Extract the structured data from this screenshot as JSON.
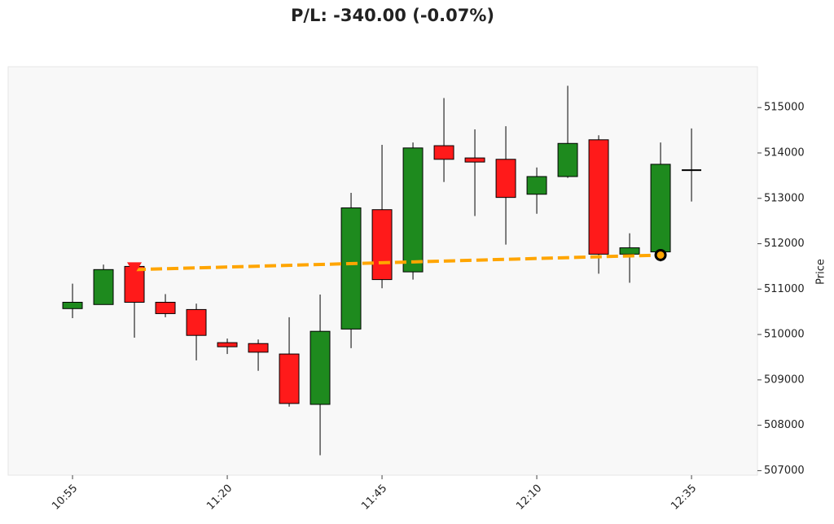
{
  "chart_data": {
    "type": "candlestick",
    "title": "P/L: -340.00 (-0.07%)",
    "y_label": "Price",
    "categories": [
      "10:55",
      null,
      null,
      null,
      null,
      "11:20",
      null,
      null,
      null,
      null,
      "11:45",
      null,
      null,
      null,
      null,
      "12:10",
      null,
      null,
      null,
      null,
      "12:35"
    ],
    "open": [
      510570,
      510660,
      511500,
      510710,
      510550,
      509820,
      509800,
      509570,
      508460,
      510120,
      512750,
      511380,
      514160,
      513890,
      513860,
      513090,
      513480,
      514290,
      511770,
      511820,
      513620
    ],
    "high": [
      511120,
      511540,
      511500,
      510890,
      510680,
      509910,
      509890,
      510380,
      510880,
      513120,
      514180,
      514230,
      515210,
      514520,
      514590,
      513680,
      515480,
      514390,
      512230,
      514230,
      514540
    ],
    "low": [
      510360,
      510660,
      509930,
      510380,
      509430,
      509570,
      509200,
      508410,
      507340,
      509700,
      511020,
      511210,
      513360,
      512610,
      511980,
      512660,
      513450,
      511340,
      511140,
      511610,
      512930
    ],
    "close": [
      510710,
      511430,
      510710,
      510460,
      509980,
      509730,
      509610,
      508480,
      510070,
      512790,
      511210,
      514110,
      513860,
      513800,
      513020,
      513480,
      514210,
      511770,
      511910,
      513750,
      513620
    ],
    "up_color": "#1e8a1e",
    "down_color": "#ff1a1a",
    "trade": {
      "x": [
        2,
        19
      ],
      "values": [
        511430,
        511750
      ],
      "color": "#ffa500"
    },
    "xlim": [
      -2.08,
      22.13
    ],
    "ylim": [
      506900,
      515900
    ],
    "yticks": [
      507000,
      508000,
      509000,
      510000,
      511000,
      512000,
      513000,
      514000,
      515000
    ]
  }
}
